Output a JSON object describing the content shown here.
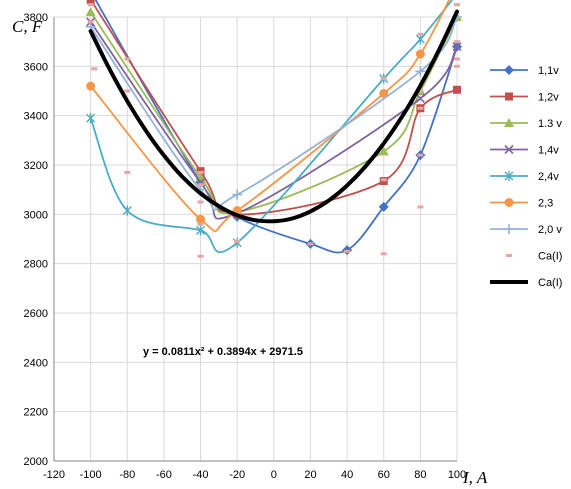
{
  "chart_data": {
    "type": "line",
    "xlabel": "I, A",
    "ylabel": "C, F",
    "xlim": [
      -120,
      100
    ],
    "ylim": [
      2000,
      3800
    ],
    "x_ticks": [
      -120,
      -100,
      -80,
      -60,
      -40,
      -20,
      0,
      20,
      40,
      60,
      80,
      100
    ],
    "y_ticks": [
      2000,
      2200,
      2400,
      2600,
      2800,
      3000,
      3200,
      3400,
      3600,
      3800
    ],
    "grid": true,
    "legend_position": "right",
    "annotation": "y = 0.0811x² + 0.3894x + 2971.5",
    "series": [
      {
        "name": "1,1v",
        "color": "#4472C4",
        "marker": "diamond",
        "x": [
          -100,
          -40,
          -20,
          20,
          40,
          60,
          80,
          100
        ],
        "y": [
          3905,
          3130,
          2990,
          2880,
          2855,
          3030,
          3240,
          3680
        ]
      },
      {
        "name": "1,2v",
        "color": "#C0504D",
        "marker": "square",
        "x": [
          -100,
          -40,
          -20,
          60,
          80,
          100
        ],
        "y": [
          3870,
          3175,
          3000,
          3135,
          3430,
          3505
        ]
      },
      {
        "name": "1.3 v",
        "color": "#9BBB59",
        "marker": "triangle",
        "x": [
          -100,
          -40,
          -20,
          60,
          80,
          100
        ],
        "y": [
          3820,
          3150,
          3010,
          3255,
          3500,
          3800
        ]
      },
      {
        "name": "1,4v",
        "color": "#8064A2",
        "marker": "x",
        "x": [
          -100,
          -40,
          -20,
          80,
          100
        ],
        "y": [
          3780,
          3130,
          3005,
          3470,
          3680
        ]
      },
      {
        "name": "2,4v",
        "color": "#4BACC6",
        "marker": "star",
        "x": [
          -100,
          -80,
          -40,
          -20,
          60,
          80,
          100
        ],
        "y": [
          3390,
          3015,
          2935,
          2885,
          3550,
          3710,
          3895
        ]
      },
      {
        "name": "2,3",
        "color": "#F79646",
        "marker": "circle",
        "x": [
          -100,
          -40,
          -20,
          60,
          80,
          100
        ],
        "y": [
          3520,
          2980,
          3015,
          3490,
          3650,
          3935
        ]
      },
      {
        "name": "2,0 v",
        "color": "#95B3D7",
        "marker": "plus",
        "x": [
          -100,
          -40,
          -20,
          80,
          100
        ],
        "y": [
          3760,
          3100,
          3080,
          3580,
          3800
        ]
      },
      {
        "name": "Ca(I)",
        "color": "#E6A5A3",
        "marker": "dash",
        "x": [
          -100,
          -100,
          -100,
          -98,
          -80,
          -80,
          -80,
          -40,
          -40,
          -40,
          -40,
          -40,
          -20,
          -20,
          20,
          40,
          60,
          60,
          60,
          80,
          80,
          80,
          80,
          80,
          100,
          100,
          100,
          100,
          100
        ],
        "y": [
          3900,
          3850,
          3780,
          3590,
          3630,
          3500,
          3170,
          3170,
          3120,
          3050,
          2960,
          2830,
          3000,
          2890,
          2880,
          2850,
          3140,
          3550,
          2840,
          3430,
          3500,
          3240,
          3030,
          3730,
          3850,
          3890,
          3700,
          3630,
          3600
        ]
      },
      {
        "name": "Ca(I)",
        "color": "#000000",
        "marker": "none",
        "line_width": 4,
        "x": [
          -100,
          -90,
          -80,
          -70,
          -60,
          -50,
          -40,
          -30,
          -20,
          -10,
          0,
          10,
          20,
          30,
          40,
          50,
          60,
          70,
          80,
          90,
          100
        ],
        "y": [
          3743,
          3593,
          3459,
          3341,
          3239,
          3153,
          3085,
          3033,
          2996,
          2976,
          2972,
          2983,
          3012,
          3056,
          3117,
          3194,
          3287,
          3396,
          3522,
          3664,
          3822
        ]
      }
    ]
  }
}
